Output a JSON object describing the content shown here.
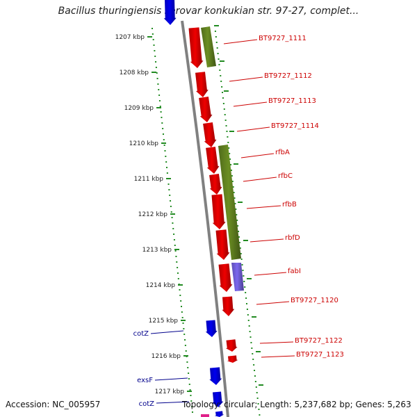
{
  "title": "Bacillus thuringiensis serovar konkukian str. 97-27, complet...",
  "footer": {
    "accession": "Accession: NC_005957",
    "summary": "Topology: circular; Length: 5,237,682 bp; Genes: 5,263"
  },
  "colors": {
    "backbone": "#808080",
    "gene_forward": "#ee0000",
    "gene_alt": "#0000ee",
    "operon": "#6b8e23",
    "operon_alt": "#7b68ee",
    "tick": "#228b22",
    "label_red": "#cc0000",
    "label_blue": "#00008b"
  },
  "kbp_labels": [
    "1207 kbp",
    "1208 kbp",
    "1209 kbp",
    "1210 kbp",
    "1211 kbp",
    "1212 kbp",
    "1213 kbp",
    "1214 kbp",
    "1215 kbp",
    "1216 kbp",
    "1217 kbp"
  ],
  "right_labels": [
    "BT9727_1111",
    "BT9727_1112",
    "BT9727_1113",
    "BT9727_1114",
    "rfbA",
    "rfbC",
    "rfbB",
    "rbfD",
    "fabI",
    "BT9727_1120",
    "BT9727_1122",
    "BT9727_1123"
  ],
  "left_labels": [
    "cotZ",
    "exsF",
    "cotZ"
  ]
}
